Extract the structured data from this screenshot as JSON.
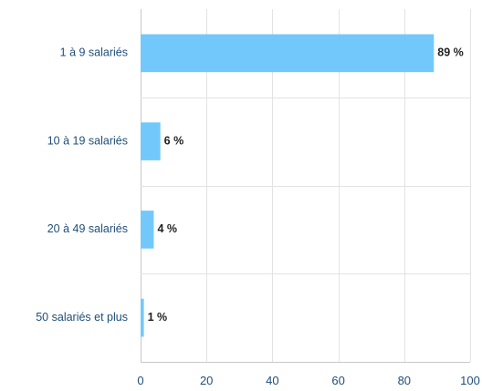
{
  "chart_data": {
    "type": "bar",
    "orientation": "horizontal",
    "categories": [
      "1 à 9 salariés",
      "10 à 19 salariés",
      "20 à 49 salariés",
      "50 salariés et plus"
    ],
    "values": [
      89,
      6,
      4,
      1
    ],
    "data_labels": [
      "89 %",
      "6 %",
      "4 %",
      "1 %"
    ],
    "xlim": [
      0,
      100
    ],
    "xticks": [
      "0",
      "20",
      "40",
      "60",
      "80",
      "100"
    ],
    "title": "",
    "xlabel": "",
    "ylabel": "",
    "grid": true,
    "legend": "none",
    "colors": {
      "bar": "#73c8fb",
      "category_text": "#1f4e79",
      "tick_text": "#1f4e79",
      "value_text": "#222222",
      "grid": "#e3e3e3"
    }
  }
}
